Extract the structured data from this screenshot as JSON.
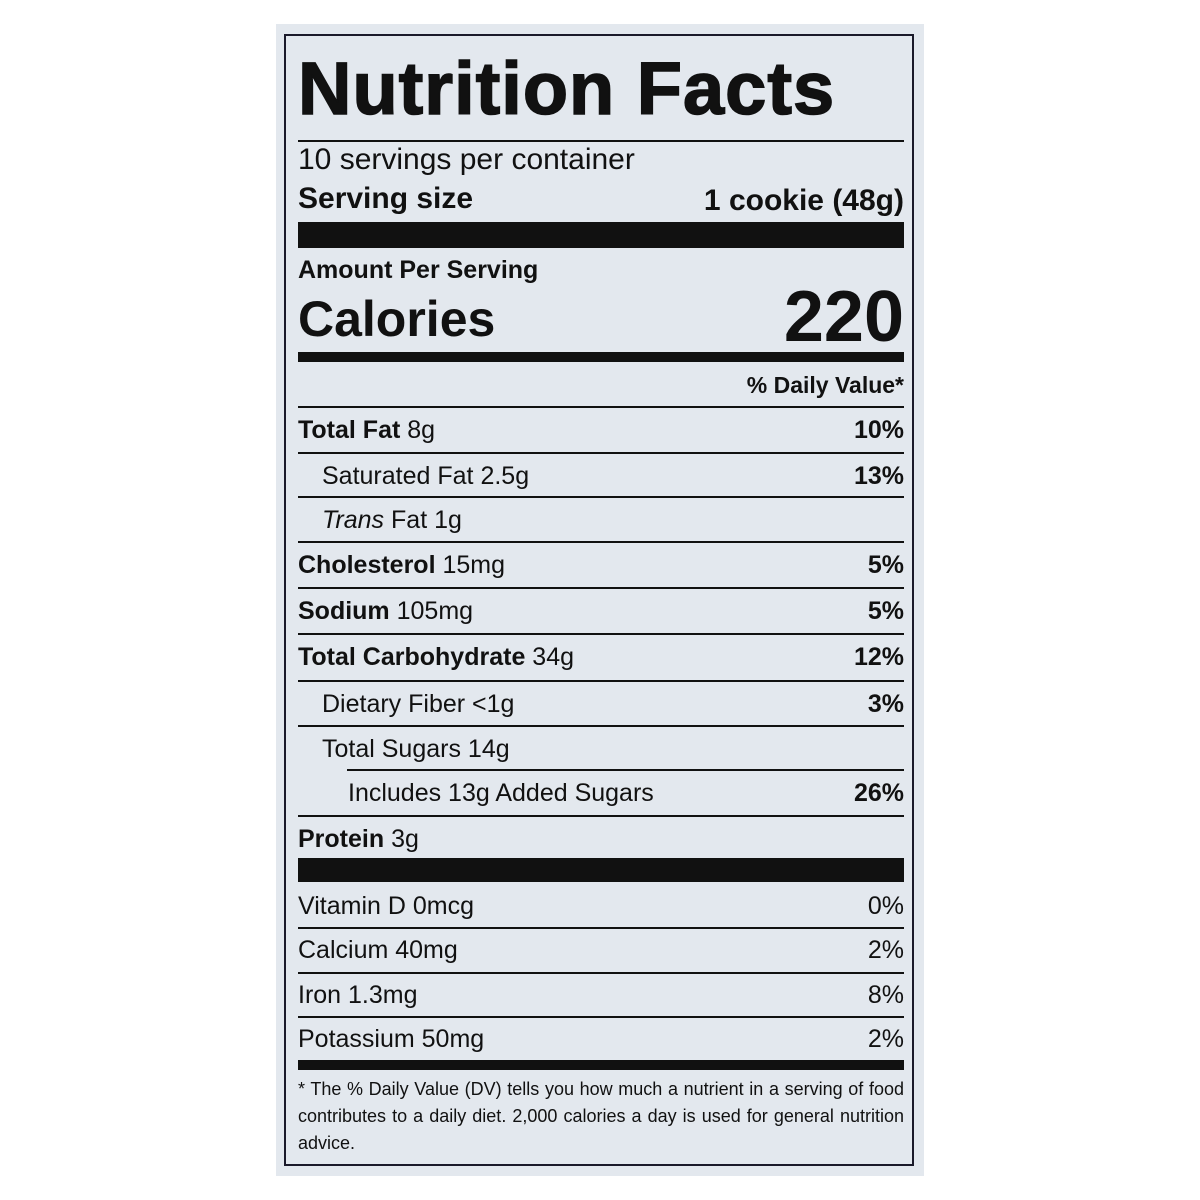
{
  "title": "Nutrition Facts",
  "servings_per_container": "10 servings per container",
  "serving_size_label": "Serving size",
  "serving_size_value": "1 cookie (48g)",
  "amount_per_serving": "Amount Per Serving",
  "calories_label": "Calories",
  "calories_value": "220",
  "daily_value_header": "% Daily Value*",
  "nutrients": [
    {
      "name": "Total Fat",
      "amount": "8g",
      "dv": "10%",
      "bold": true,
      "indent": 0
    },
    {
      "name": "Saturated Fat",
      "amount": "2.5g",
      "dv": "13%",
      "bold": false,
      "indent": 1
    },
    {
      "name": "Trans",
      "name_suffix": "Fat",
      "amount": "1g",
      "dv": "",
      "bold": false,
      "indent": 1,
      "italic": true
    },
    {
      "name": "Cholesterol",
      "amount": "15mg",
      "dv": "5%",
      "bold": true,
      "indent": 0
    },
    {
      "name": "Sodium",
      "amount": "105mg",
      "dv": "5%",
      "bold": true,
      "indent": 0
    },
    {
      "name": "Total Carbohydrate",
      "amount": "34g",
      "dv": "12%",
      "bold": true,
      "indent": 0
    },
    {
      "name": "Dietary Fiber",
      "amount": "<1g",
      "dv": "3%",
      "bold": false,
      "indent": 1
    },
    {
      "name": "Total Sugars",
      "amount": "14g",
      "dv": "",
      "bold": false,
      "indent": 1
    },
    {
      "name": "Includes 13g Added Sugars",
      "amount": "",
      "dv": "26%",
      "bold": false,
      "indent": 2
    },
    {
      "name": "Protein",
      "amount": "3g",
      "dv": "",
      "bold": true,
      "indent": 0
    }
  ],
  "vitamins": [
    {
      "name": "Vitamin D 0mcg",
      "dv": "0%"
    },
    {
      "name": "Calcium 40mg",
      "dv": "2%"
    },
    {
      "name": "Iron 1.3mg",
      "dv": "8%"
    },
    {
      "name": "Potassium 50mg",
      "dv": "2%"
    }
  ],
  "footnote": "* The % Daily Value (DV) tells you how much a nutrient in a serving of food contributes to a daily diet. 2,000 calories a day is used for general nutrition advice."
}
